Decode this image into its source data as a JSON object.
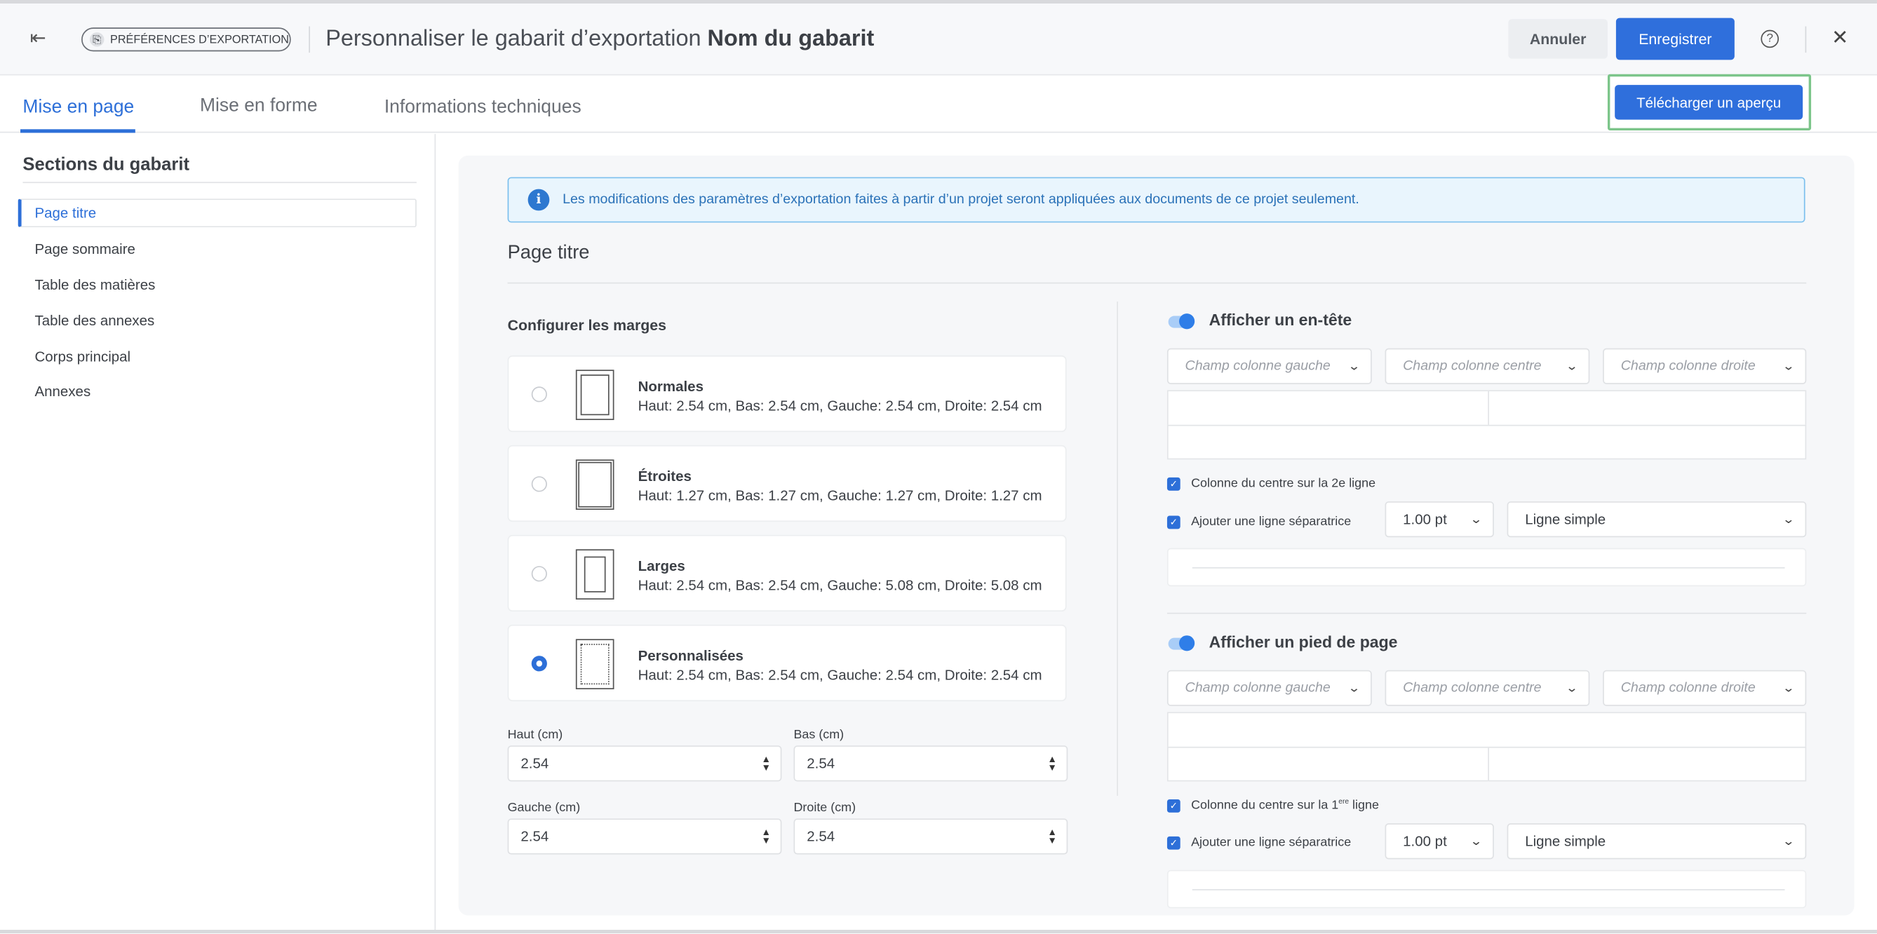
{
  "header": {
    "back_icon": "collapse-left-icon",
    "chip_label": "PRÉFÉRENCES D’EXPORTATION",
    "title_prefix": "Personnaliser le gabarit d’exportation",
    "title_name": "Nom du gabarit",
    "cancel_label": "Annuler",
    "save_label": "Enregistrer",
    "help_icon": "?",
    "close_icon": "✕"
  },
  "tabs": [
    {
      "label": "Mise en page",
      "active": true
    },
    {
      "label": "Mise en forme",
      "active": false
    },
    {
      "label": "Informations techniques",
      "active": false
    }
  ],
  "download_preview_label": "Télécharger un aperçu",
  "sidebar": {
    "title": "Sections du gabarit",
    "items": [
      "Page titre",
      "Page sommaire",
      "Table des matières",
      "Table des annexes",
      "Corps principal",
      "Annexes"
    ],
    "selected": "Page titre"
  },
  "banner": {
    "icon": "i",
    "text": "Les modifications des paramètres d’exportation faites à partir d’un projet seront appliquées aux documents de ce projet seulement."
  },
  "section_title": "Page titre",
  "margins": {
    "title": "Configurer les marges",
    "options": [
      {
        "title": "Normales",
        "desc": "Haut: 2.54 cm, Bas: 2.54 cm, Gauche: 2.54 cm, Droite: 2.54 cm",
        "selected": false
      },
      {
        "title": "Étroites",
        "desc": "Haut: 1.27 cm, Bas: 1.27 cm, Gauche: 1.27 cm, Droite: 1.27 cm",
        "selected": false
      },
      {
        "title": "Larges",
        "desc": "Haut: 2.54 cm, Bas: 2.54 cm, Gauche: 5.08 cm, Droite: 5.08 cm",
        "selected": false
      },
      {
        "title": "Personnalisées",
        "desc": "Haut: 2.54 cm, Bas: 2.54 cm, Gauche: 2.54 cm, Droite: 2.54 cm",
        "selected": true
      }
    ],
    "fields": {
      "top": {
        "label": "Haut (cm)",
        "value": "2.54"
      },
      "bottom": {
        "label": "Bas (cm)",
        "value": "2.54"
      },
      "left": {
        "label": "Gauche (cm)",
        "value": "2.54"
      },
      "right": {
        "label": "Droite (cm)",
        "value": "2.54"
      }
    }
  },
  "page_header": {
    "toggle_label": "Afficher un en-tête",
    "enabled": true,
    "left_placeholder": "Champ colonne gauche",
    "center_placeholder": "Champ colonne centre",
    "right_placeholder": "Champ colonne droite",
    "center_row_label": "Colonne du centre sur la 2e ligne",
    "separator_label": "Ajouter une ligne séparatrice",
    "thickness": "1.00 pt",
    "line_style": "Ligne simple"
  },
  "page_footer": {
    "toggle_label": "Afficher un pied de page",
    "enabled": true,
    "left_placeholder": "Champ colonne gauche",
    "center_placeholder": "Champ colonne centre",
    "right_placeholder": "Champ colonne droite",
    "center_row_label_pre": "Colonne du centre sur la 1",
    "center_row_label_sup": "ere",
    "center_row_label_post": " ligne",
    "separator_label": "Ajouter une ligne séparatrice",
    "thickness": "1.00 pt",
    "line_style": "Ligne simple"
  },
  "colors": {
    "accent": "#2d6fd8",
    "highlight_outline": "#7cc58a",
    "banner_bg": "#e9f5fd"
  }
}
